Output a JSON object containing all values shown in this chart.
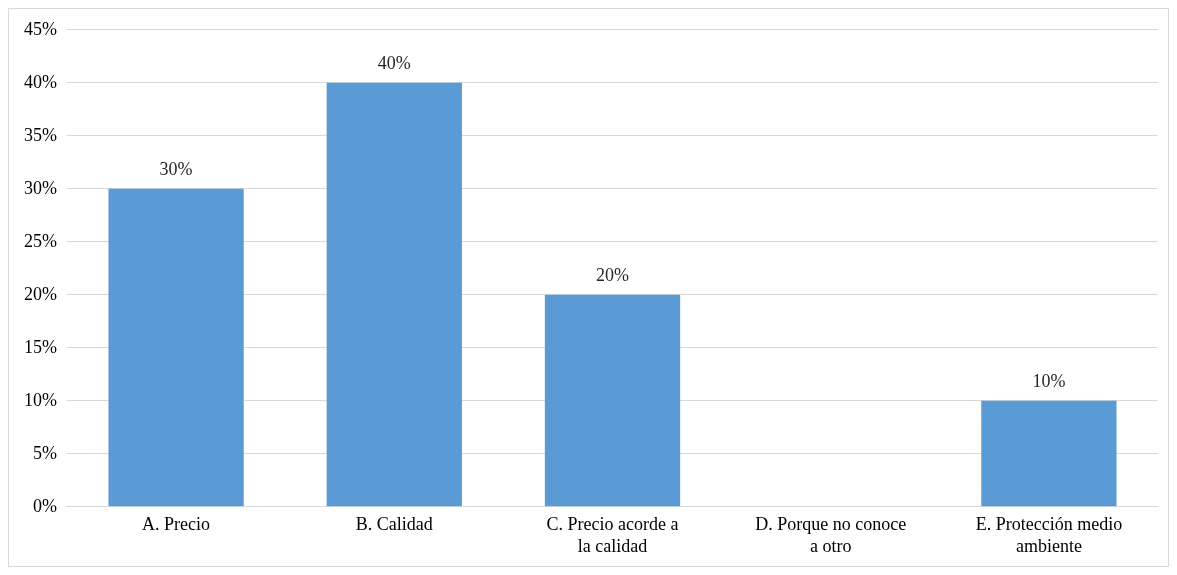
{
  "chart_data": {
    "type": "bar",
    "categories": [
      "A. Precio",
      "B. Calidad",
      "C. Precio acorde a la calidad",
      "D. Porque no conoce a otro",
      "E. Protección medio ambiente"
    ],
    "values": [
      30,
      40,
      20,
      0,
      10
    ],
    "color": "#5b9bd5",
    "value_labels": [
      "30%",
      "40%",
      "20%",
      null,
      "10%"
    ],
    "ylim": [
      0,
      45
    ],
    "yticks": [
      {
        "value": 0,
        "label": "0%"
      },
      {
        "value": 5,
        "label": "5%"
      },
      {
        "value": 10,
        "label": "10%"
      },
      {
        "value": 15,
        "label": "15%"
      },
      {
        "value": 20,
        "label": "20%"
      },
      {
        "value": 25,
        "label": "25%"
      },
      {
        "value": 30,
        "label": "30%"
      },
      {
        "value": 35,
        "label": "35%"
      },
      {
        "value": 40,
        "label": "40%"
      },
      {
        "value": 45,
        "label": "45%"
      }
    ],
    "grid": "y",
    "legend": false
  }
}
